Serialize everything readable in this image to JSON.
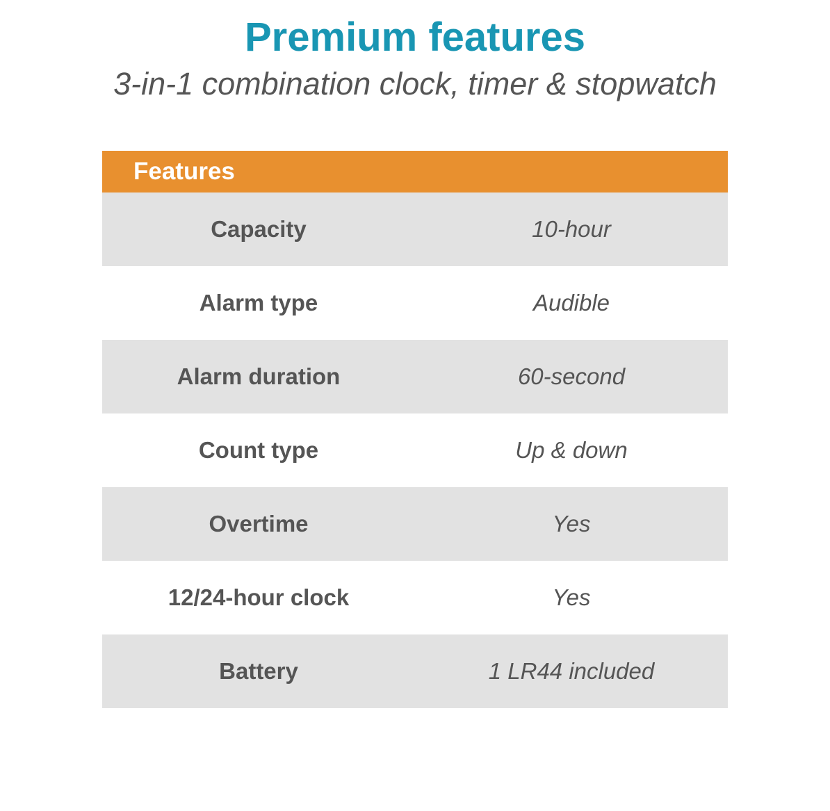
{
  "header": {
    "title": "Premium features",
    "subtitle": "3-in-1 combination clock, timer & stopwatch"
  },
  "table": {
    "header_label": "Features",
    "header_bg_color": "#e8902f",
    "header_text_color": "#ffffff",
    "alt_row_color": "#e2e2e2",
    "normal_row_color": "#ffffff",
    "text_color": "#555555",
    "title_color": "#1996b3",
    "rows": [
      {
        "label": "Capacity",
        "value": "10-hour"
      },
      {
        "label": "Alarm type",
        "value": "Audible"
      },
      {
        "label": "Alarm duration",
        "value": "60-second"
      },
      {
        "label": "Count type",
        "value": "Up & down"
      },
      {
        "label": "Overtime",
        "value": "Yes"
      },
      {
        "label": "12/24-hour clock",
        "value": "Yes"
      },
      {
        "label": "Battery",
        "value": "1 LR44 included"
      }
    ]
  }
}
